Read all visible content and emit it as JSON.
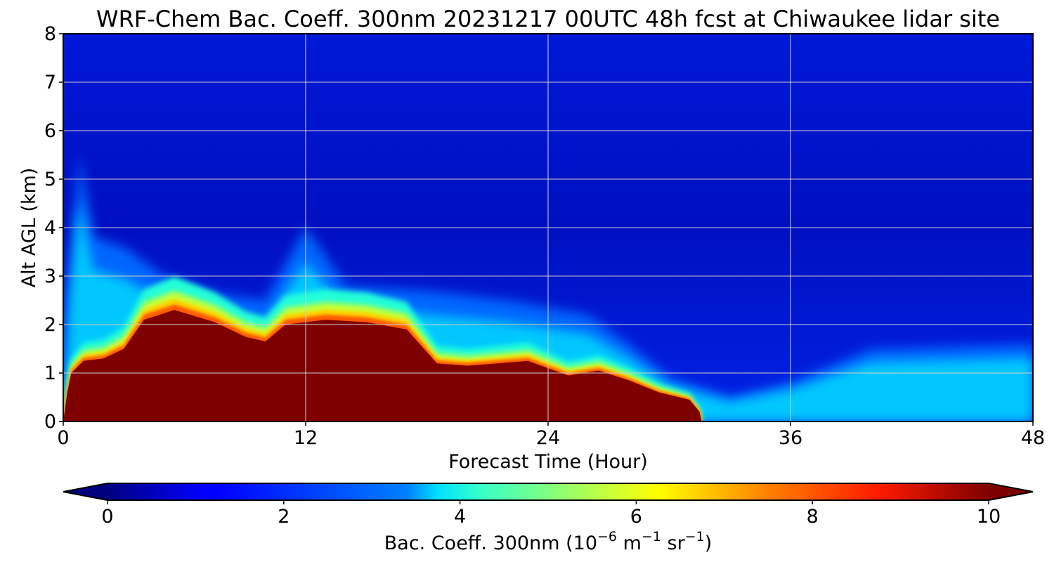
{
  "chart_data": {
    "type": "heatmap",
    "title": "WRF-Chem Bac. Coeff. 300nm  20231217 00UTC 48h fcst at Chiwaukee lidar site",
    "xlabel": "Forecast Time (Hour)",
    "ylabel": "Alt AGL (km)",
    "xlim": [
      0,
      48
    ],
    "ylim": [
      0,
      8
    ],
    "x_ticks": [
      0,
      12,
      24,
      36,
      48
    ],
    "y_ticks": [
      0,
      1,
      2,
      3,
      4,
      5,
      6,
      7,
      8
    ],
    "grid": true,
    "colormap": "jet",
    "colorbar": {
      "label_main": "Bac. Coeff. 300nm  (10",
      "label_exp1": "−6",
      "label_unit1": " m",
      "label_exp2": "−1",
      "label_unit2": " sr",
      "label_exp3": "−1",
      "label_end": ")",
      "min": 0,
      "max": 10,
      "ticks": [
        0,
        2,
        4,
        6,
        8,
        10
      ],
      "extend": "both",
      "orientation": "horizontal",
      "colors": {
        "under": "#00007f",
        "over": "#7f0000"
      }
    },
    "surface_layer_top_km": [
      {
        "hour": 0.0,
        "km": 0.0
      },
      {
        "hour": 0.2,
        "km": 0.6
      },
      {
        "hour": 0.4,
        "km": 1.0
      },
      {
        "hour": 1.0,
        "km": 1.25
      },
      {
        "hour": 2.0,
        "km": 1.3
      },
      {
        "hour": 3.0,
        "km": 1.5
      },
      {
        "hour": 4.0,
        "km": 2.1
      },
      {
        "hour": 5.5,
        "km": 2.3
      },
      {
        "hour": 7.5,
        "km": 2.05
      },
      {
        "hour": 9.0,
        "km": 1.75
      },
      {
        "hour": 10.0,
        "km": 1.65
      },
      {
        "hour": 11.0,
        "km": 2.0
      },
      {
        "hour": 13.0,
        "km": 2.1
      },
      {
        "hour": 15.0,
        "km": 2.05
      },
      {
        "hour": 17.0,
        "km": 1.9
      },
      {
        "hour": 18.5,
        "km": 1.2
      },
      {
        "hour": 20.0,
        "km": 1.15
      },
      {
        "hour": 21.5,
        "km": 1.2
      },
      {
        "hour": 23.0,
        "km": 1.25
      },
      {
        "hour": 25.0,
        "km": 0.95
      },
      {
        "hour": 26.5,
        "km": 1.05
      },
      {
        "hour": 28.0,
        "km": 0.85
      },
      {
        "hour": 29.5,
        "km": 0.6
      },
      {
        "hour": 31.0,
        "km": 0.45
      },
      {
        "hour": 31.5,
        "km": 0.2
      },
      {
        "hour": 31.6,
        "km": 0.0
      }
    ],
    "elevated_layer_top_km": [
      {
        "hour": 0.0,
        "km": 0.0
      },
      {
        "hour": 0.3,
        "km": 3.0
      },
      {
        "hour": 0.8,
        "km": 5.5
      },
      {
        "hour": 1.5,
        "km": 3.8
      },
      {
        "hour": 3.0,
        "km": 3.6
      },
      {
        "hour": 5.0,
        "km": 3.0
      },
      {
        "hour": 8.0,
        "km": 2.6
      },
      {
        "hour": 10.0,
        "km": 2.5
      },
      {
        "hour": 12.0,
        "km": 4.0
      },
      {
        "hour": 14.0,
        "km": 2.8
      },
      {
        "hour": 18.0,
        "km": 2.7
      },
      {
        "hour": 22.0,
        "km": 2.5
      },
      {
        "hour": 26.0,
        "km": 2.2
      },
      {
        "hour": 28.0,
        "km": 1.6
      },
      {
        "hour": 30.0,
        "km": 0.9
      },
      {
        "hour": 33.0,
        "km": 0.5
      },
      {
        "hour": 36.0,
        "km": 0.8
      },
      {
        "hour": 40.0,
        "km": 1.5
      },
      {
        "hour": 48.0,
        "km": 1.6
      }
    ]
  }
}
